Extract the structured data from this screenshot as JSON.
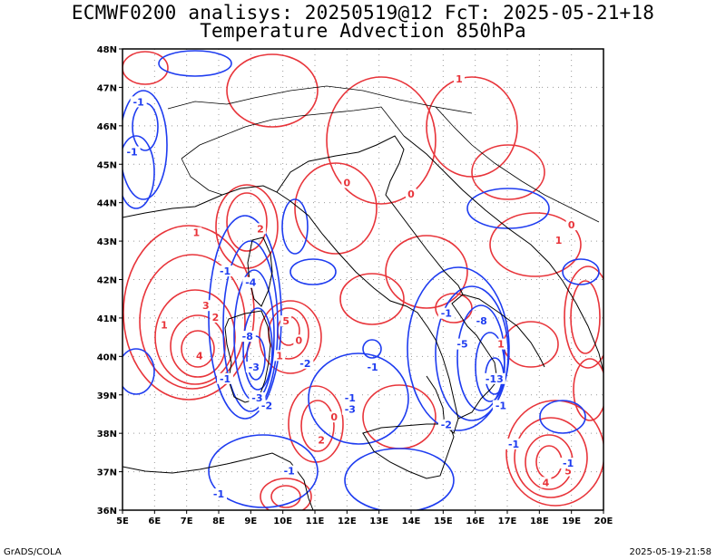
{
  "title": {
    "line1": "ECMWF0200 analisys: 20250519@12 FcT: 2025-05-21+18",
    "line2": "Temperature Advection 850hPa"
  },
  "footer": {
    "left": "GrADS/COLA",
    "right": "2025-05-19-21:58"
  },
  "map": {
    "lon_range": [
      5,
      20
    ],
    "lat_range": [
      36,
      48
    ],
    "lon_ticks": [
      "5E",
      "6E",
      "7E",
      "8E",
      "9E",
      "10E",
      "11E",
      "12E",
      "13E",
      "14E",
      "15E",
      "16E",
      "17E",
      "18E",
      "19E",
      "20E"
    ],
    "lat_ticks": [
      "36N",
      "37N",
      "38N",
      "39N",
      "40N",
      "41N",
      "42N",
      "43N",
      "44N",
      "45N",
      "46N",
      "47N",
      "48N"
    ],
    "grid": "dotted",
    "colors": {
      "warm_advection": "#e8343a",
      "cold_advection": "#1e3cf0",
      "coastline": "#000000",
      "grid": "#999999"
    }
  },
  "contour_labels": [
    {
      "text": "1",
      "lon": 7.3,
      "lat": 43.2,
      "type": "warm"
    },
    {
      "text": "3",
      "lon": 7.6,
      "lat": 41.3,
      "type": "warm"
    },
    {
      "text": "2",
      "lon": 7.9,
      "lat": 41.0,
      "type": "warm"
    },
    {
      "text": "1",
      "lon": 6.3,
      "lat": 40.8,
      "type": "warm"
    },
    {
      "text": "4",
      "lon": 7.4,
      "lat": 40.0,
      "type": "warm"
    },
    {
      "text": "2",
      "lon": 9.3,
      "lat": 43.3,
      "type": "warm"
    },
    {
      "text": "1",
      "lon": 9.9,
      "lat": 40.0,
      "type": "warm"
    },
    {
      "text": "5",
      "lon": 10.1,
      "lat": 40.9,
      "type": "warm"
    },
    {
      "text": "0",
      "lon": 10.5,
      "lat": 40.4,
      "type": "warm"
    },
    {
      "text": "0",
      "lon": 12.0,
      "lat": 44.5,
      "type": "warm"
    },
    {
      "text": "0",
      "lon": 14.0,
      "lat": 44.2,
      "type": "warm"
    },
    {
      "text": "1",
      "lon": 15.5,
      "lat": 47.2,
      "type": "warm"
    },
    {
      "text": "1",
      "lon": 16.8,
      "lat": 40.3,
      "type": "warm"
    },
    {
      "text": "1",
      "lon": 18.6,
      "lat": 43.0,
      "type": "warm"
    },
    {
      "text": "0",
      "lon": 19.0,
      "lat": 43.4,
      "type": "warm"
    },
    {
      "text": "0",
      "lon": 11.6,
      "lat": 38.4,
      "type": "warm"
    },
    {
      "text": "2",
      "lon": 11.2,
      "lat": 37.8,
      "type": "warm"
    },
    {
      "text": "5",
      "lon": 18.9,
      "lat": 37.0,
      "type": "warm"
    },
    {
      "text": "4",
      "lon": 18.2,
      "lat": 36.7,
      "type": "warm"
    },
    {
      "text": "-1",
      "lon": 5.5,
      "lat": 46.6,
      "type": "cold"
    },
    {
      "text": "-1",
      "lon": 5.3,
      "lat": 45.3,
      "type": "cold"
    },
    {
      "text": "-1",
      "lon": 8.2,
      "lat": 42.2,
      "type": "cold"
    },
    {
      "text": "-4",
      "lon": 9.0,
      "lat": 41.9,
      "type": "cold"
    },
    {
      "text": "-8",
      "lon": 8.9,
      "lat": 40.5,
      "type": "cold"
    },
    {
      "text": "-3",
      "lon": 9.1,
      "lat": 39.7,
      "type": "cold"
    },
    {
      "text": "-1",
      "lon": 8.2,
      "lat": 39.4,
      "type": "cold"
    },
    {
      "text": "-2",
      "lon": 9.5,
      "lat": 38.7,
      "type": "cold"
    },
    {
      "text": "-3",
      "lon": 9.2,
      "lat": 38.9,
      "type": "cold"
    },
    {
      "text": "-2",
      "lon": 10.7,
      "lat": 39.8,
      "type": "cold"
    },
    {
      "text": "-1",
      "lon": 12.8,
      "lat": 39.7,
      "type": "cold"
    },
    {
      "text": "-1",
      "lon": 12.1,
      "lat": 38.9,
      "type": "cold"
    },
    {
      "text": "-3",
      "lon": 12.1,
      "lat": 38.6,
      "type": "cold"
    },
    {
      "text": "-1",
      "lon": 15.1,
      "lat": 41.1,
      "type": "cold"
    },
    {
      "text": "-5",
      "lon": 15.6,
      "lat": 40.3,
      "type": "cold"
    },
    {
      "text": "-8",
      "lon": 16.2,
      "lat": 40.9,
      "type": "cold"
    },
    {
      "text": "-13",
      "lon": 16.6,
      "lat": 39.4,
      "type": "cold"
    },
    {
      "text": "-1",
      "lon": 16.8,
      "lat": 38.7,
      "type": "cold"
    },
    {
      "text": "-2",
      "lon": 15.1,
      "lat": 38.2,
      "type": "cold"
    },
    {
      "text": "-1",
      "lon": 17.2,
      "lat": 37.7,
      "type": "cold"
    },
    {
      "text": "-1",
      "lon": 18.9,
      "lat": 37.2,
      "type": "cold"
    },
    {
      "text": "-1",
      "lon": 8.0,
      "lat": 36.4,
      "type": "cold"
    },
    {
      "text": "-1",
      "lon": 10.2,
      "lat": 37.0,
      "type": "cold"
    }
  ]
}
